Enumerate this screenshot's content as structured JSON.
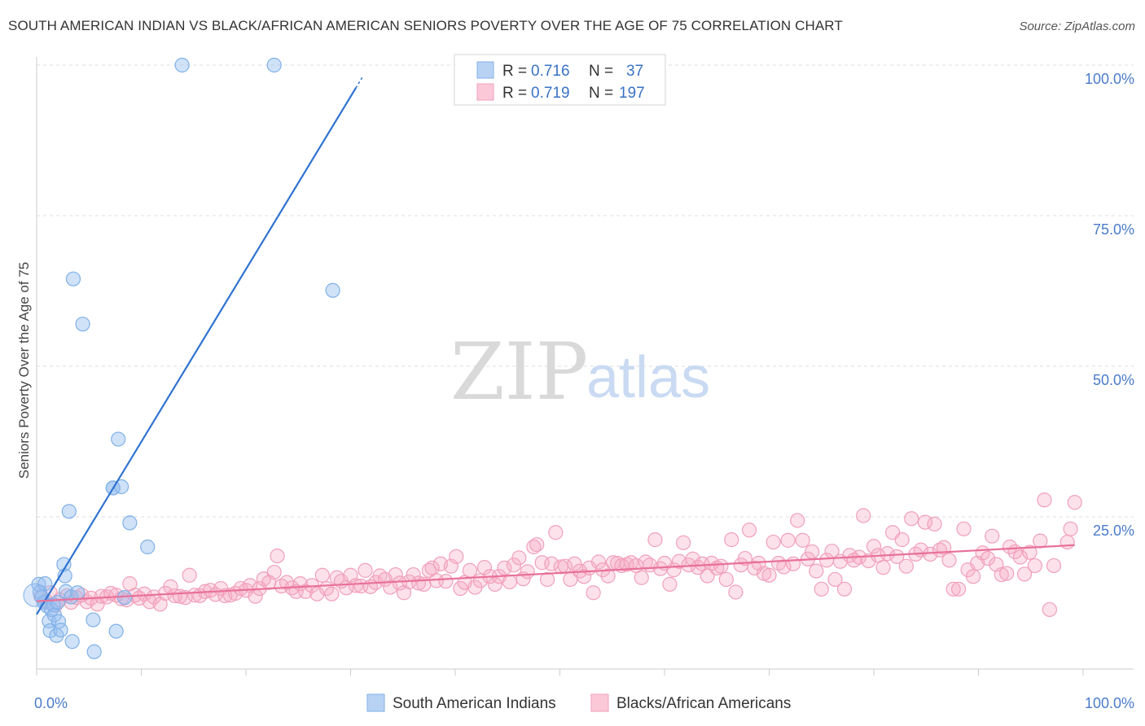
{
  "title": "SOUTH AMERICAN INDIAN VS BLACK/AFRICAN AMERICAN SENIORS POVERTY OVER THE AGE OF 75 CORRELATION CHART",
  "source": "Source: ZipAtlas.com",
  "watermark": {
    "zip": "ZIP",
    "atlas": "atlas"
  },
  "colors": {
    "blue": "#7fb0e8",
    "blue_line": "#2f73d0",
    "pink": "#f0a0ba",
    "pink_line": "#e8709a"
  },
  "legend": {
    "r_label": "R =",
    "n_label": "N =",
    "rows": [
      {
        "r": "0.716",
        "n": "37"
      },
      {
        "r": "0.719",
        "n": "197"
      }
    ]
  },
  "chart_data": {
    "type": "scatter",
    "title": "SOUTH AMERICAN INDIAN VS BLACK/AFRICAN AMERICAN SENIORS POVERTY OVER THE AGE OF 75 CORRELATION CHART",
    "xlabel": "",
    "ylabel": "Seniors Poverty Over the Age of 75",
    "xlim": [
      0,
      100
    ],
    "ylim": [
      0,
      100
    ],
    "x_tick_labels": [
      "0.0%",
      "100.0%"
    ],
    "y_tick_labels": [
      "100.0%",
      "75.0%",
      "50.0%",
      "25.0%"
    ],
    "y_ticks": [
      100,
      75,
      50,
      25
    ],
    "grid": true,
    "legend_position": "top-center",
    "series": [
      {
        "name": "South American Indians",
        "r": 0.716,
        "n": 37,
        "trend": {
          "x": [
            0,
            30.5
          ],
          "y": [
            8.8,
            96.2
          ]
        },
        "points": [
          [
            0.2,
            13.8
          ],
          [
            0.3,
            12.5
          ],
          [
            0.5,
            11.6
          ],
          [
            0.7,
            10.8
          ],
          [
            0.8,
            13.9
          ],
          [
            1.0,
            10.2
          ],
          [
            1.2,
            7.7
          ],
          [
            1.3,
            6.1
          ],
          [
            1.4,
            9.6
          ],
          [
            1.6,
            10.4
          ],
          [
            1.7,
            8.7
          ],
          [
            1.9,
            5.3
          ],
          [
            2.0,
            10.8
          ],
          [
            2.1,
            7.6
          ],
          [
            2.3,
            6.2
          ],
          [
            2.6,
            17.1
          ],
          [
            2.7,
            15.2
          ],
          [
            2.8,
            12.6
          ],
          [
            3.1,
            25.9
          ],
          [
            3.3,
            11.7
          ],
          [
            3.4,
            4.3
          ],
          [
            3.5,
            64.5
          ],
          [
            3.9,
            12.4
          ],
          [
            4.4,
            57.0
          ],
          [
            5.4,
            7.9
          ],
          [
            7.3,
            29.8
          ],
          [
            7.6,
            6.0
          ],
          [
            7.8,
            37.9
          ],
          [
            7.3,
            29.8
          ],
          [
            8.1,
            30.0
          ],
          [
            8.4,
            11.6
          ],
          [
            8.9,
            24.0
          ],
          [
            10.6,
            20.0
          ],
          [
            13.9,
            100.0
          ],
          [
            22.7,
            100.0
          ],
          [
            28.3,
            62.6
          ],
          [
            5.5,
            2.6
          ]
        ]
      },
      {
        "name": "Blacks/African Americans",
        "r": 0.719,
        "n": 197,
        "trend": {
          "x": [
            0,
            99.2
          ],
          "y": [
            11.0,
            20.3
          ]
        },
        "points": [
          [
            0.4,
            11.8
          ],
          [
            0.9,
            11.0
          ],
          [
            1.3,
            12.4
          ],
          [
            1.8,
            10.3
          ],
          [
            2.2,
            11.2
          ],
          [
            2.9,
            11.9
          ],
          [
            3.3,
            10.8
          ],
          [
            3.8,
            11.6
          ],
          [
            4.3,
            12.0
          ],
          [
            4.8,
            10.9
          ],
          [
            5.2,
            11.5
          ],
          [
            5.8,
            10.5
          ],
          [
            6.2,
            11.8
          ],
          [
            6.7,
            11.7
          ],
          [
            7.1,
            12.3
          ],
          [
            7.6,
            12.0
          ],
          [
            8.1,
            11.4
          ],
          [
            8.6,
            11.2
          ],
          [
            8.9,
            13.9
          ],
          [
            9.4,
            12.0
          ],
          [
            9.8,
            11.5
          ],
          [
            10.3,
            12.2
          ],
          [
            10.8,
            10.9
          ],
          [
            11.2,
            11.7
          ],
          [
            11.8,
            10.5
          ],
          [
            12.3,
            12.3
          ],
          [
            12.8,
            13.4
          ],
          [
            13.2,
            11.9
          ],
          [
            13.7,
            11.8
          ],
          [
            14.2,
            11.6
          ],
          [
            14.6,
            15.3
          ],
          [
            15.1,
            12.0
          ],
          [
            15.6,
            11.9
          ],
          [
            16.1,
            12.6
          ],
          [
            16.6,
            12.8
          ],
          [
            17.1,
            12.1
          ],
          [
            17.6,
            13.1
          ],
          [
            18.0,
            11.9
          ],
          [
            18.5,
            12.0
          ],
          [
            19.0,
            12.3
          ],
          [
            19.5,
            13.1
          ],
          [
            20.0,
            12.8
          ],
          [
            20.4,
            13.6
          ],
          [
            20.9,
            11.8
          ],
          [
            21.3,
            13.1
          ],
          [
            21.7,
            14.7
          ],
          [
            22.2,
            14.1
          ],
          [
            22.7,
            15.8
          ],
          [
            23.0,
            18.5
          ],
          [
            23.4,
            13.5
          ],
          [
            23.9,
            14.1
          ],
          [
            24.4,
            13.2
          ],
          [
            24.8,
            12.6
          ],
          [
            25.2,
            13.9
          ],
          [
            25.7,
            12.6
          ],
          [
            26.3,
            13.6
          ],
          [
            26.8,
            12.2
          ],
          [
            27.3,
            15.3
          ],
          [
            27.7,
            13.1
          ],
          [
            28.2,
            12.2
          ],
          [
            28.7,
            14.9
          ],
          [
            29.1,
            14.3
          ],
          [
            29.6,
            13.2
          ],
          [
            30.0,
            15.3
          ],
          [
            30.5,
            13.6
          ],
          [
            31.0,
            13.5
          ],
          [
            31.4,
            16.1
          ],
          [
            31.9,
            13.4
          ],
          [
            32.4,
            14.1
          ],
          [
            32.8,
            15.2
          ],
          [
            33.3,
            14.6
          ],
          [
            33.8,
            13.3
          ],
          [
            34.3,
            15.4
          ],
          [
            34.7,
            14.0
          ],
          [
            35.1,
            12.4
          ],
          [
            35.6,
            14.2
          ],
          [
            36.0,
            15.4
          ],
          [
            36.5,
            14.0
          ],
          [
            37.0,
            13.8
          ],
          [
            37.5,
            16.1
          ],
          [
            37.8,
            16.5
          ],
          [
            38.2,
            14.4
          ],
          [
            38.6,
            17.2
          ],
          [
            39.1,
            14.3
          ],
          [
            39.6,
            16.8
          ],
          [
            40.1,
            18.4
          ],
          [
            40.5,
            13.1
          ],
          [
            40.9,
            14.1
          ],
          [
            41.4,
            16.1
          ],
          [
            41.9,
            13.3
          ],
          [
            42.4,
            14.4
          ],
          [
            42.8,
            16.6
          ],
          [
            43.3,
            15.1
          ],
          [
            43.8,
            13.8
          ],
          [
            44.2,
            15.1
          ],
          [
            44.7,
            16.5
          ],
          [
            45.2,
            14.2
          ],
          [
            45.6,
            17.0
          ],
          [
            46.1,
            18.2
          ],
          [
            46.5,
            14.7
          ],
          [
            46.9,
            15.9
          ],
          [
            47.5,
            20.0
          ],
          [
            47.8,
            20.4
          ],
          [
            48.3,
            17.4
          ],
          [
            48.8,
            14.6
          ],
          [
            49.2,
            17.2
          ],
          [
            49.6,
            22.4
          ],
          [
            50.1,
            16.7
          ],
          [
            50.5,
            16.8
          ],
          [
            51.0,
            14.6
          ],
          [
            51.4,
            17.2
          ],
          [
            51.9,
            16.0
          ],
          [
            52.3,
            15.1
          ],
          [
            52.8,
            16.5
          ],
          [
            53.2,
            12.4
          ],
          [
            53.7,
            17.5
          ],
          [
            54.1,
            16.2
          ],
          [
            54.6,
            15.2
          ],
          [
            55.1,
            17.4
          ],
          [
            55.5,
            17.3
          ],
          [
            55.9,
            16.9
          ],
          [
            56.4,
            17.1
          ],
          [
            56.8,
            17.4
          ],
          [
            57.3,
            16.9
          ],
          [
            57.8,
            14.9
          ],
          [
            58.2,
            17.5
          ],
          [
            58.6,
            17.0
          ],
          [
            59.1,
            21.2
          ],
          [
            59.6,
            16.4
          ],
          [
            60.0,
            17.3
          ],
          [
            60.5,
            13.8
          ],
          [
            60.9,
            16.2
          ],
          [
            61.4,
            17.6
          ],
          [
            61.8,
            20.7
          ],
          [
            62.3,
            17.0
          ],
          [
            62.7,
            18.0
          ],
          [
            63.2,
            16.6
          ],
          [
            63.6,
            17.2
          ],
          [
            64.1,
            15.2
          ],
          [
            64.5,
            17.3
          ],
          [
            65.0,
            16.5
          ],
          [
            65.4,
            16.8
          ],
          [
            65.9,
            14.6
          ],
          [
            66.4,
            21.2
          ],
          [
            66.8,
            12.5
          ],
          [
            67.3,
            17.0
          ],
          [
            67.7,
            18.1
          ],
          [
            68.1,
            22.8
          ],
          [
            68.6,
            16.5
          ],
          [
            69.0,
            17.3
          ],
          [
            69.5,
            15.6
          ],
          [
            70.0,
            15.3
          ],
          [
            70.4,
            20.8
          ],
          [
            70.9,
            17.3
          ],
          [
            71.4,
            16.7
          ],
          [
            71.8,
            21.1
          ],
          [
            72.3,
            17.2
          ],
          [
            72.7,
            24.4
          ],
          [
            73.2,
            21.1
          ],
          [
            73.7,
            18.0
          ],
          [
            74.1,
            19.2
          ],
          [
            74.5,
            16.0
          ],
          [
            75.0,
            13.0
          ],
          [
            75.5,
            17.8
          ],
          [
            76.0,
            19.3
          ],
          [
            76.3,
            14.6
          ],
          [
            76.8,
            17.6
          ],
          [
            77.2,
            13.0
          ],
          [
            77.7,
            18.6
          ],
          [
            78.1,
            17.8
          ],
          [
            78.6,
            18.3
          ],
          [
            79.0,
            25.2
          ],
          [
            79.5,
            17.7
          ],
          [
            80.0,
            20.1
          ],
          [
            80.4,
            18.6
          ],
          [
            80.9,
            16.6
          ],
          [
            81.3,
            18.9
          ],
          [
            81.8,
            22.4
          ],
          [
            82.2,
            18.4
          ],
          [
            82.7,
            21.2
          ],
          [
            83.1,
            16.8
          ],
          [
            83.6,
            24.7
          ],
          [
            84.0,
            18.8
          ],
          [
            84.5,
            19.5
          ],
          [
            84.9,
            24.1
          ],
          [
            85.4,
            18.8
          ],
          [
            85.8,
            23.8
          ],
          [
            86.3,
            19.5
          ],
          [
            86.7,
            19.9
          ],
          [
            87.2,
            17.8
          ],
          [
            87.6,
            13.0
          ],
          [
            88.1,
            13.0
          ],
          [
            88.6,
            23.0
          ],
          [
            89.0,
            16.2
          ],
          [
            89.5,
            15.1
          ],
          [
            89.9,
            17.3
          ],
          [
            90.4,
            19.0
          ],
          [
            90.9,
            18.1
          ],
          [
            91.3,
            21.8
          ],
          [
            91.7,
            17.1
          ],
          [
            92.2,
            15.4
          ],
          [
            92.7,
            15.6
          ],
          [
            93.0,
            20.0
          ],
          [
            93.5,
            19.2
          ],
          [
            94.0,
            18.3
          ],
          [
            94.4,
            15.5
          ],
          [
            94.9,
            19.1
          ],
          [
            95.4,
            16.9
          ],
          [
            95.9,
            21.0
          ],
          [
            96.3,
            27.8
          ],
          [
            96.8,
            9.6
          ],
          [
            97.2,
            16.9
          ],
          [
            98.5,
            20.8
          ],
          [
            98.8,
            23.0
          ],
          [
            99.2,
            27.4
          ]
        ]
      }
    ]
  },
  "bottom_legend": [
    {
      "label": "South American Indians"
    },
    {
      "label": "Blacks/African Americans"
    }
  ]
}
